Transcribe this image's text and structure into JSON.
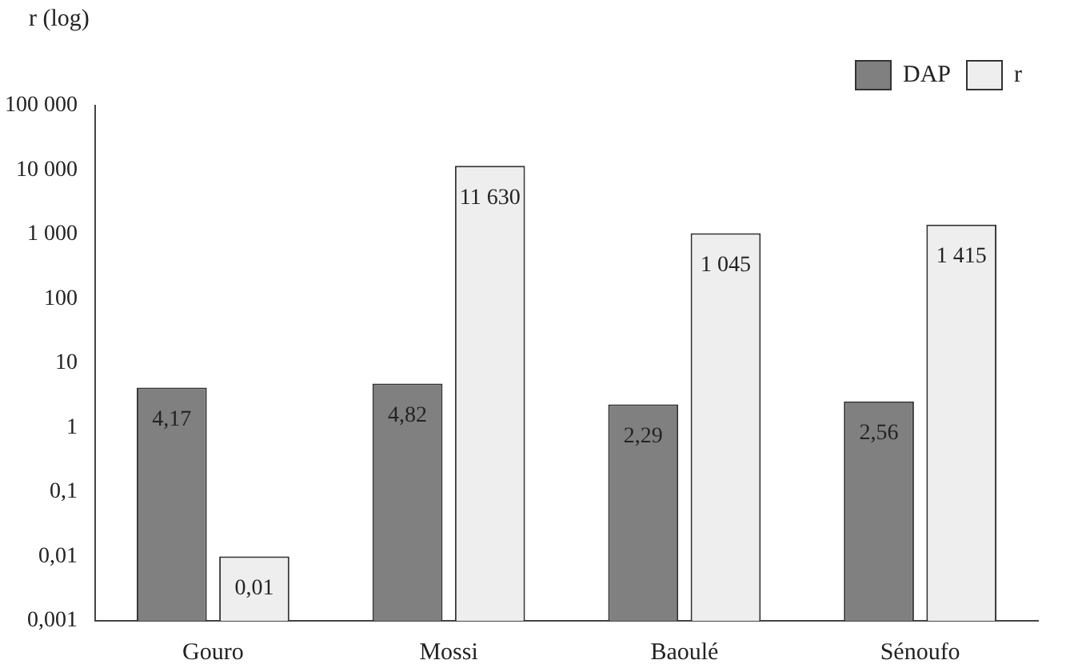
{
  "chart_data": {
    "type": "bar",
    "ylabel": "r (log)",
    "categories": [
      "Gouro",
      "Mossi",
      "Baoulé",
      "Sénoufo"
    ],
    "series": [
      {
        "name": "DAP",
        "color": "#808080",
        "values": [
          4.17,
          4.82,
          2.29,
          2.56
        ],
        "value_labels": [
          "4,17",
          "4,82",
          "2,29",
          "2,56"
        ]
      },
      {
        "name": "r",
        "color": "#eeeeee",
        "values": [
          0.01,
          11630,
          1045,
          1415
        ],
        "value_labels": [
          "0,01",
          "11 630",
          "1 045",
          "1 415"
        ]
      }
    ],
    "log": "y",
    "ylim": [
      0.001,
      100000
    ],
    "yticks": [
      {
        "value": 0.001,
        "label": "0,001"
      },
      {
        "value": 0.01,
        "label": "0,01"
      },
      {
        "value": 0.1,
        "label": "0,1"
      },
      1,
      10,
      100,
      {
        "value": 1000,
        "label": "1 000"
      },
      {
        "value": 10000,
        "label": "10 000"
      },
      {
        "value": 100000,
        "label": "100 000"
      }
    ],
    "grid": false,
    "legend": "top right"
  }
}
